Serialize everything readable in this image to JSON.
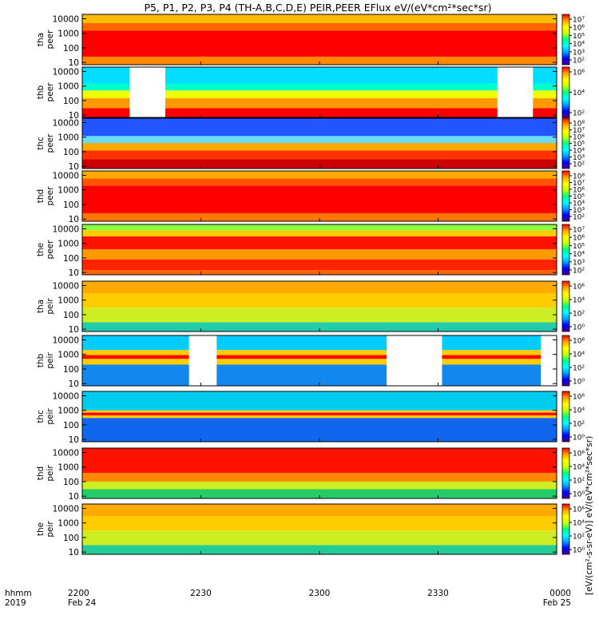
{
  "title": "P5, P1, P2, P3, P4 (TH-A,B,C,D,E) PEIR,PEER EFlux eV/(eV*cm²*sec*sr)",
  "chart_data": {
    "type": "heatmap",
    "title": "P5, P1, P2, P3, P4 (TH-A,B,C,D,E) PEIR,PEER EFlux eV/(eV*cm²*sec*sr)",
    "x_unit_label": "hhmm",
    "x_year_label": "2019",
    "x_ticks": [
      {
        "time": "2200",
        "date": "Feb 24"
      },
      {
        "time": "2230",
        "date": ""
      },
      {
        "time": "2300",
        "date": ""
      },
      {
        "time": "2330",
        "date": ""
      },
      {
        "time": "0000",
        "date": "Feb 25"
      }
    ],
    "xlim": [
      "2019-02-24 22:00",
      "2019-02-25 00:00"
    ],
    "y_scale": "log",
    "ylim": [
      7,
      20000
    ],
    "y_ticks": [
      10,
      100,
      1000,
      10000
    ],
    "y_tick_labels": [
      "10",
      "100",
      "1000",
      "10000"
    ],
    "colorbar_label": "[eV/(cm²-s-sr-eV)] eV/(eV*cm²*sec*sr)",
    "colormap": [
      "#4b0082",
      "#0000ff",
      "#00a0ff",
      "#00ffff",
      "#00ff80",
      "#c8ff00",
      "#ffff00",
      "#ffa000",
      "#ff0000"
    ],
    "panels": [
      {
        "label1": "tha",
        "label2": "peer",
        "colorbar_labels": [
          "10⁷",
          "10⁶",
          "10⁵",
          "10⁴",
          "10³",
          "10²"
        ],
        "bands": [
          {
            "emin": 7,
            "emax": 25,
            "color": "#ff8800"
          },
          {
            "emin": 25,
            "emax": 1500,
            "color": "#ff0000"
          },
          {
            "emin": 1500,
            "emax": 5000,
            "color": "#ff6600"
          },
          {
            "emin": 5000,
            "emax": 20000,
            "color": "#ffbb00"
          }
        ],
        "gaps": []
      },
      {
        "label1": "thb",
        "label2": "peer",
        "colorbar_labels": [
          "10⁶",
          "10⁴",
          "10²"
        ],
        "bands": [
          {
            "emin": 7,
            "emax": 30,
            "color": "#ff0000"
          },
          {
            "emin": 30,
            "emax": 150,
            "color": "#ff9900"
          },
          {
            "emin": 150,
            "emax": 500,
            "color": "#eeff00"
          },
          {
            "emin": 500,
            "emax": 1500,
            "color": "#00ffcc"
          },
          {
            "emin": 1500,
            "emax": 20000,
            "color": "#00ddff"
          }
        ],
        "gaps": [
          [
            "22:12",
            "22:21"
          ],
          [
            "23:45",
            "23:54"
          ]
        ]
      },
      {
        "label1": "thc",
        "label2": "peer",
        "colorbar_labels": [
          "10⁸",
          "10⁷",
          "10⁶",
          "10⁵",
          "10⁴",
          "10³",
          "10²"
        ],
        "bands": [
          {
            "emin": 7,
            "emax": 30,
            "color": "#cc0000"
          },
          {
            "emin": 30,
            "emax": 120,
            "color": "#ff3300"
          },
          {
            "emin": 120,
            "emax": 400,
            "color": "#ffaa00"
          },
          {
            "emin": 400,
            "emax": 1200,
            "color": "#66ddff"
          },
          {
            "emin": 1200,
            "emax": 20000,
            "color": "#2255ff"
          }
        ],
        "gaps": []
      },
      {
        "label1": "thd",
        "label2": "peer",
        "colorbar_labels": [
          "10⁸",
          "10⁷",
          "10⁶",
          "10⁵",
          "10⁴",
          "10³",
          "10²"
        ],
        "bands": [
          {
            "emin": 7,
            "emax": 25,
            "color": "#ff7700"
          },
          {
            "emin": 25,
            "emax": 2000,
            "color": "#ff0000"
          },
          {
            "emin": 2000,
            "emax": 6000,
            "color": "#ff5500"
          },
          {
            "emin": 6000,
            "emax": 20000,
            "color": "#ffaa00"
          }
        ],
        "gaps": []
      },
      {
        "label1": "the",
        "label2": "peer",
        "colorbar_labels": [
          "10⁷",
          "10⁶",
          "10⁵",
          "10⁴",
          "10³",
          "10²"
        ],
        "bands": [
          {
            "emin": 7,
            "emax": 15,
            "color": "#ff6600"
          },
          {
            "emin": 15,
            "emax": 80,
            "color": "#ff2200"
          },
          {
            "emin": 80,
            "emax": 400,
            "color": "#ff9900"
          },
          {
            "emin": 400,
            "emax": 3000,
            "color": "#ff1100"
          },
          {
            "emin": 3000,
            "emax": 8000,
            "color": "#ffcc00"
          },
          {
            "emin": 8000,
            "emax": 20000,
            "color": "#88ff44"
          }
        ],
        "gaps": []
      },
      {
        "label1": "tha",
        "label2": "peir",
        "colorbar_labels": [
          "10⁶",
          "10⁴",
          "10²",
          "10⁰"
        ],
        "bands": [
          {
            "emin": 7,
            "emax": 30,
            "color": "#22ccaa"
          },
          {
            "emin": 30,
            "emax": 300,
            "color": "#ccee22"
          },
          {
            "emin": 300,
            "emax": 3000,
            "color": "#ffcc00"
          },
          {
            "emin": 3000,
            "emax": 20000,
            "color": "#ffaa00"
          }
        ],
        "gaps": []
      },
      {
        "label1": "thb",
        "label2": "peir",
        "colorbar_labels": [
          "10⁶",
          "10⁴",
          "10²",
          "10⁰"
        ],
        "bands": [
          {
            "emin": 7,
            "emax": 200,
            "color": "#1188ee"
          },
          {
            "emin": 200,
            "emax": 500,
            "color": "#ffcc00"
          },
          {
            "emin": 500,
            "emax": 900,
            "color": "#ff0000"
          },
          {
            "emin": 900,
            "emax": 2000,
            "color": "#ffcc00"
          },
          {
            "emin": 2000,
            "emax": 20000,
            "color": "#00ccff"
          }
        ],
        "gaps": [
          [
            "22:27",
            "22:34"
          ],
          [
            "23:17",
            "23:31"
          ],
          [
            "23:56",
            "24:00"
          ]
        ]
      },
      {
        "label1": "thc",
        "label2": "peir",
        "colorbar_labels": [
          "10⁶",
          "10⁴",
          "10²",
          "10⁰"
        ],
        "bands": [
          {
            "emin": 7,
            "emax": 300,
            "color": "#1166ee"
          },
          {
            "emin": 300,
            "emax": 450,
            "color": "#ffcc00"
          },
          {
            "emin": 450,
            "emax": 700,
            "color": "#ff0000"
          },
          {
            "emin": 700,
            "emax": 1000,
            "color": "#ffcc00"
          },
          {
            "emin": 1000,
            "emax": 20000,
            "color": "#00ccee"
          }
        ],
        "gaps": []
      },
      {
        "label1": "thd",
        "label2": "peir",
        "colorbar_labels": [
          "10⁶",
          "10⁴",
          "10²",
          "10⁰"
        ],
        "bands": [
          {
            "emin": 7,
            "emax": 30,
            "color": "#22cc66"
          },
          {
            "emin": 30,
            "emax": 100,
            "color": "#ccee22"
          },
          {
            "emin": 100,
            "emax": 400,
            "color": "#ff8800"
          },
          {
            "emin": 400,
            "emax": 20000,
            "color": "#ff1100"
          }
        ],
        "gaps": []
      },
      {
        "label1": "the",
        "label2": "peir",
        "colorbar_labels": [
          "10⁶",
          "10⁴",
          "10²",
          "10⁰"
        ],
        "bands": [
          {
            "emin": 7,
            "emax": 30,
            "color": "#22cc99"
          },
          {
            "emin": 30,
            "emax": 300,
            "color": "#ccee22"
          },
          {
            "emin": 300,
            "emax": 3000,
            "color": "#ffcc00"
          },
          {
            "emin": 3000,
            "emax": 20000,
            "color": "#ffaa00"
          }
        ],
        "gaps": []
      }
    ]
  }
}
